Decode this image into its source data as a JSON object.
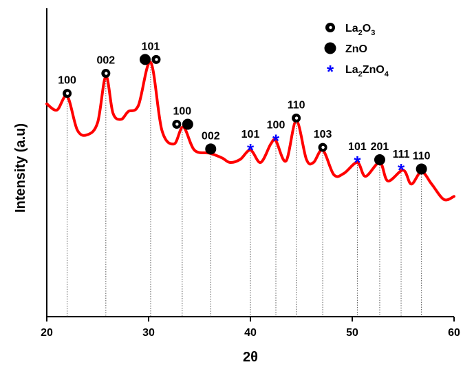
{
  "chart_data": {
    "type": "line",
    "xlabel": "2θ",
    "ylabel": "Intensity (a.u)",
    "xlim": [
      20,
      60
    ],
    "xticks": [
      "20",
      "30",
      "40",
      "50",
      "60"
    ],
    "y_ticks_shown": false,
    "grid": false,
    "legend_position": "top-right",
    "line_color": "#ff0000",
    "legend": [
      {
        "symbol": "open-circle",
        "label": "La",
        "sub1": "2",
        "label2": "O",
        "sub2": "3"
      },
      {
        "symbol": "filled-circle",
        "label": "ZnO"
      },
      {
        "symbol": "star",
        "label": "La",
        "sub1": "2",
        "label2": "ZnO",
        "sub2": "4"
      }
    ],
    "series": [
      {
        "values": [
          [
            20.0,
            0.69
          ],
          [
            21.0,
            0.67
          ],
          [
            22.0,
            0.715
          ],
          [
            23.0,
            0.605
          ],
          [
            24.0,
            0.59
          ],
          [
            25.0,
            0.63
          ],
          [
            25.8,
            0.78
          ],
          [
            26.5,
            0.66
          ],
          [
            27.3,
            0.64
          ],
          [
            28.0,
            0.665
          ],
          [
            29.0,
            0.685
          ],
          [
            30.2,
            0.825
          ],
          [
            31.3,
            0.605
          ],
          [
            32.5,
            0.56
          ],
          [
            33.4,
            0.615
          ],
          [
            34.5,
            0.54
          ],
          [
            36.0,
            0.53
          ],
          [
            37.2,
            0.515
          ],
          [
            38.0,
            0.5
          ],
          [
            39.0,
            0.51
          ],
          [
            40.0,
            0.54
          ],
          [
            41.0,
            0.5
          ],
          [
            42.0,
            0.56
          ],
          [
            42.5,
            0.57
          ],
          [
            43.5,
            0.505
          ],
          [
            44.5,
            0.635
          ],
          [
            45.5,
            0.51
          ],
          [
            46.2,
            0.5
          ],
          [
            47.1,
            0.54
          ],
          [
            48.2,
            0.46
          ],
          [
            49.2,
            0.465
          ],
          [
            50.5,
            0.5
          ],
          [
            51.3,
            0.455
          ],
          [
            52.7,
            0.5
          ],
          [
            53.5,
            0.44
          ],
          [
            55.0,
            0.475
          ],
          [
            55.8,
            0.43
          ],
          [
            56.8,
            0.47
          ],
          [
            57.8,
            0.43
          ],
          [
            59.0,
            0.38
          ],
          [
            60.0,
            0.39
          ]
        ]
      }
    ],
    "peaks": [
      {
        "x": 22.0,
        "y": 0.715,
        "label": "100",
        "markers": [
          "open-circle"
        ]
      },
      {
        "x": 25.8,
        "y": 0.78,
        "label": "002",
        "markers": [
          "open-circle"
        ]
      },
      {
        "x": 30.2,
        "y": 0.825,
        "label": "101",
        "markers": [
          "filled-circle",
          "open-circle"
        ]
      },
      {
        "x": 33.3,
        "y": 0.615,
        "label": "100",
        "markers": [
          "open-circle",
          "filled-circle"
        ]
      },
      {
        "x": 36.1,
        "y": 0.535,
        "label": "002",
        "markers": [
          "filled-circle"
        ]
      },
      {
        "x": 40.0,
        "y": 0.54,
        "label": "101",
        "markers": [
          "star"
        ]
      },
      {
        "x": 42.5,
        "y": 0.57,
        "label": "100",
        "markers": [
          "star"
        ]
      },
      {
        "x": 44.5,
        "y": 0.635,
        "label": "110",
        "markers": [
          "open-circle"
        ]
      },
      {
        "x": 47.1,
        "y": 0.54,
        "label": "103",
        "markers": [
          "open-circle"
        ]
      },
      {
        "x": 50.5,
        "y": 0.5,
        "label": "101",
        "markers": [
          "star"
        ]
      },
      {
        "x": 52.7,
        "y": 0.5,
        "label": "201",
        "markers": [
          "filled-circle"
        ]
      },
      {
        "x": 54.8,
        "y": 0.475,
        "label": "111",
        "markers": [
          "star"
        ]
      },
      {
        "x": 56.8,
        "y": 0.47,
        "label": "110",
        "markers": [
          "filled-circle"
        ]
      }
    ]
  }
}
